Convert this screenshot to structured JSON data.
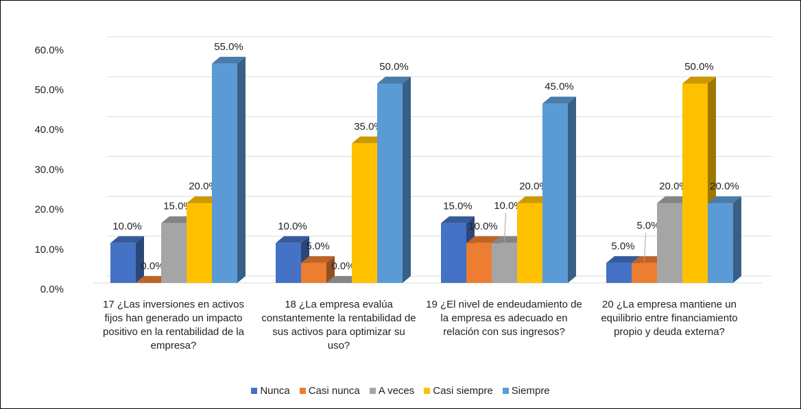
{
  "chart_data": {
    "type": "bar3d",
    "categories": [
      "17 ¿Las inversiones en activos fijos han generado un impacto positivo en la rentabilidad de la empresa?",
      "18 ¿La empresa evalúa constantemente la rentabilidad de sus activos para optimizar su uso?",
      "19 ¿El nivel de endeudamiento de la empresa es adecuado en relación con sus ingresos?",
      "20 ¿La empresa mantiene un equilibrio entre financiamiento propio y deuda externa?"
    ],
    "series": [
      {
        "name": "Nunca",
        "color": "#4472c4",
        "values": [
          10,
          10,
          15,
          5
        ],
        "value_labels": [
          "10.0%",
          "10.0%",
          "15.0%",
          "5.0%"
        ]
      },
      {
        "name": "Casi nunca",
        "color": "#ed7d31",
        "values": [
          0,
          5,
          10,
          5
        ],
        "value_labels": [
          "0.0%",
          "5.0%",
          "10.0%",
          "5.0%"
        ]
      },
      {
        "name": "A veces",
        "color": "#a5a5a5",
        "values": [
          15,
          0,
          10,
          20
        ],
        "value_labels": [
          "15.0%",
          "0.0%",
          "10.0%",
          "20.0%"
        ]
      },
      {
        "name": "Casi siempre",
        "color": "#ffc000",
        "values": [
          20,
          35,
          20,
          50
        ],
        "value_labels": [
          "20.0%",
          "35.0%",
          "20.0%",
          "50.0%"
        ]
      },
      {
        "name": "Siempre",
        "color": "#5b9bd5",
        "values": [
          55,
          50,
          45,
          20
        ],
        "value_labels": [
          "55.0%",
          "50.0%",
          "45.0%",
          "20.0%"
        ]
      }
    ],
    "ylim": [
      0,
      60
    ],
    "yticks": [
      {
        "value": 0,
        "label": "0.0%"
      },
      {
        "value": 10,
        "label": "10.0%"
      },
      {
        "value": 20,
        "label": "20.0%"
      },
      {
        "value": 30,
        "label": "30.0%"
      },
      {
        "value": 40,
        "label": "40.0%"
      },
      {
        "value": 50,
        "label": "50.0%"
      },
      {
        "value": 60,
        "label": "60.0%"
      }
    ],
    "grid": true,
    "legend": "bottom"
  }
}
